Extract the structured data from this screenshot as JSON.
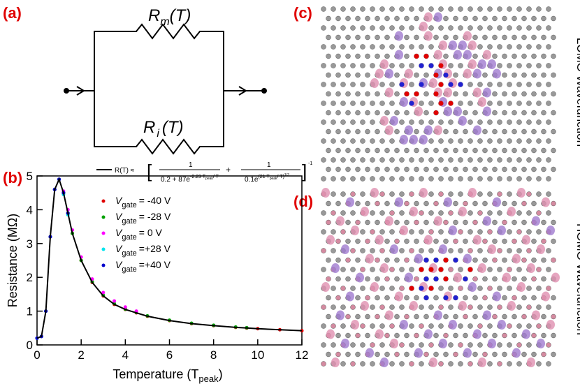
{
  "panels": {
    "a": "(a)",
    "b": "(b)",
    "c": "(c)",
    "d": "(d)"
  },
  "circuit": {
    "top_label": "R",
    "top_sub": "m",
    "top_end": "(T)",
    "bottom_label": "R",
    "bottom_sub": "i",
    "bottom_end": "(T)"
  },
  "side_labels": {
    "c": "LUMO Wavefunction",
    "d": "HOMO Wavefunction"
  },
  "chart_data": {
    "type": "scatter",
    "xlabel": "Temperature (T",
    "xlabel_sub": "peak",
    "xlabel_end": ")",
    "ylabel": "Resistance (MΩ)",
    "x": [
      0,
      0.2,
      0.4,
      0.6,
      0.8,
      1.0,
      1.2,
      1.4,
      1.6,
      2,
      2.5,
      3,
      3.5,
      4,
      4.5,
      5,
      6,
      7,
      8,
      9,
      9.5,
      10,
      11,
      12
    ],
    "xlim": [
      0,
      12
    ],
    "xticks": [
      0,
      2,
      4,
      6,
      8,
      10,
      12
    ],
    "ylim": [
      0,
      5
    ],
    "yticks": [
      0,
      1,
      2,
      3,
      4,
      5
    ],
    "legend_symbol": "V",
    "legend_subscript": "gate",
    "series": [
      {
        "name": "= -40 V",
        "color": "#e00000",
        "values": [
          0.2,
          0.25,
          1.0,
          3.2,
          4.6,
          4.9,
          4.5,
          3.9,
          3.3,
          2.5,
          1.85,
          1.45,
          1.2,
          1.05,
          0.95,
          0.85,
          0.72,
          0.63,
          0.57,
          0.52,
          0.5,
          0.48,
          0.45,
          0.42
        ]
      },
      {
        "name": "= -28 V",
        "color": "#00a000",
        "values": [
          0.2,
          0.25,
          1.0,
          3.2,
          4.6,
          4.9,
          4.5,
          3.9,
          3.3,
          2.5,
          1.87,
          1.47,
          1.22,
          1.06,
          0.96,
          0.86,
          0.73,
          0.64,
          0.58,
          0.53,
          0.51,
          null,
          null,
          null
        ]
      },
      {
        "name": "=    0 V",
        "color": "#ff00ff",
        "values": [
          0.2,
          0.25,
          1.0,
          3.2,
          4.6,
          4.9,
          4.55,
          4.0,
          3.4,
          2.6,
          1.95,
          1.55,
          1.3,
          1.12,
          1.0,
          null,
          null,
          null,
          null,
          null,
          null,
          null,
          null,
          null
        ]
      },
      {
        "name": "=+28 V",
        "color": "#00e5ee",
        "values": [
          0.2,
          0.25,
          1.0,
          3.2,
          4.6,
          4.9,
          4.45,
          3.85,
          null,
          null,
          null,
          null,
          null,
          null,
          null,
          null,
          null,
          null,
          null,
          null,
          null,
          null,
          null,
          null
        ]
      },
      {
        "name": "=+40 V",
        "color": "#0000cc",
        "values": [
          0.2,
          0.25,
          1.0,
          3.2,
          4.6,
          4.9,
          4.5,
          3.9,
          null,
          null,
          null,
          null,
          null,
          null,
          null,
          null,
          null,
          null,
          null,
          null,
          null,
          null,
          null,
          null
        ]
      }
    ],
    "fit": {
      "color": "#000000",
      "values": [
        0.2,
        0.25,
        1.0,
        3.2,
        4.6,
        4.9,
        4.5,
        3.9,
        3.3,
        2.5,
        1.85,
        1.45,
        1.2,
        1.05,
        0.95,
        0.85,
        0.72,
        0.63,
        0.57,
        0.52,
        0.5,
        0.48,
        0.45,
        0.42
      ],
      "label": "R(T) ≈",
      "num": "1",
      "den1": "0.2 + 87e",
      "exp1": "-2.23 T",
      "exp1_sub": "peak",
      "exp1_end": "/ T",
      "plus": "+",
      "den2": "0.1e",
      "exp2": "(21 T",
      "exp2_sub": "peak",
      "exp2_end": "/ T)",
      "exp2_pow": "1/2",
      "power": "-1"
    }
  }
}
